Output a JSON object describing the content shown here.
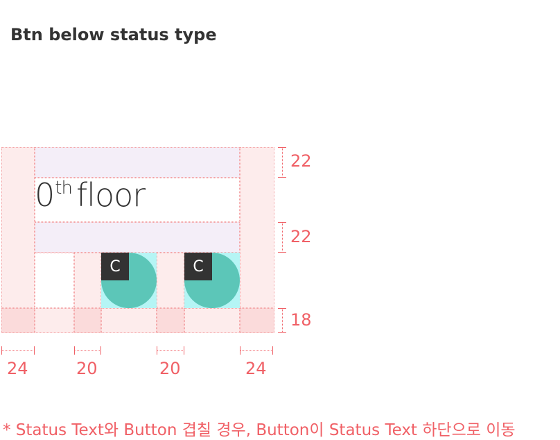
{
  "title": "Btn below status type",
  "floor": {
    "number": "0",
    "suffix": "th",
    "word": "floor"
  },
  "buttons": [
    {
      "label": "C"
    },
    {
      "label": "C"
    }
  ],
  "dimensions": {
    "vertical": [
      "22",
      "22",
      "18"
    ],
    "horizontal": [
      "24",
      "20",
      "20",
      "24"
    ]
  },
  "note": "* Status Text와 Button 겹칠 경우, Button이 Status Text 하단으로 이동",
  "colors": {
    "margin": "#fdecec",
    "spacing": "#f4eef8",
    "button_area": "#b5f5f5",
    "button_circle": "#5cc6b8",
    "chip": "#333333",
    "annotation": "#f06066"
  }
}
